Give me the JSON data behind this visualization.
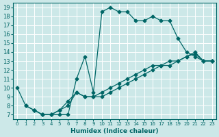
{
  "xlabel": "Humidex (Indice chaleur)",
  "bg_color": "#cce8e8",
  "line_color": "#006666",
  "grid_color": "#ffffff",
  "xlim": [
    -0.5,
    23.5
  ],
  "ylim": [
    6.5,
    19.5
  ],
  "xticks": [
    0,
    1,
    2,
    3,
    4,
    5,
    6,
    7,
    8,
    9,
    10,
    11,
    12,
    13,
    14,
    15,
    16,
    17,
    18,
    19,
    20,
    21,
    22,
    23
  ],
  "yticks": [
    7,
    8,
    9,
    10,
    11,
    12,
    13,
    14,
    15,
    16,
    17,
    18,
    19
  ],
  "curve1_x": [
    0,
    1,
    2,
    3,
    4,
    5,
    6,
    7,
    8,
    9,
    10,
    11,
    12,
    13,
    14,
    15,
    16,
    17,
    18,
    19,
    20,
    21,
    22,
    23
  ],
  "curve1_y": [
    10,
    8,
    7.5,
    7,
    7,
    7,
    7,
    11,
    13.5,
    9.5,
    18.5,
    19,
    18.5,
    18.5,
    17.5,
    17.5,
    18,
    17.5,
    17.5,
    15.5,
    14,
    13.5,
    13,
    13
  ],
  "curve2_x": [
    1,
    2,
    3,
    4,
    5,
    6,
    7,
    8,
    9,
    10,
    11,
    12,
    13,
    14,
    15,
    16,
    17,
    18,
    19,
    20,
    21,
    22,
    23
  ],
  "curve2_y": [
    8,
    7.5,
    7,
    7,
    7.5,
    8,
    9.5,
    9,
    9,
    9.5,
    10,
    10.5,
    11,
    11.5,
    12,
    12.5,
    12.5,
    13,
    13,
    13.5,
    13.8,
    13,
    13
  ],
  "curve3_x": [
    2,
    3,
    4,
    5,
    6,
    7,
    8,
    9,
    10,
    11,
    12,
    13,
    14,
    15,
    16,
    17,
    18,
    19,
    20,
    21,
    22,
    23
  ],
  "curve3_y": [
    7.5,
    7,
    7,
    7.5,
    8.5,
    9.5,
    9,
    9,
    9,
    9.5,
    10,
    10.5,
    11,
    11.5,
    12,
    12.5,
    12.5,
    13,
    13.5,
    14,
    13,
    13
  ],
  "marker": "D",
  "markersize": 2.5,
  "linewidth": 0.9
}
